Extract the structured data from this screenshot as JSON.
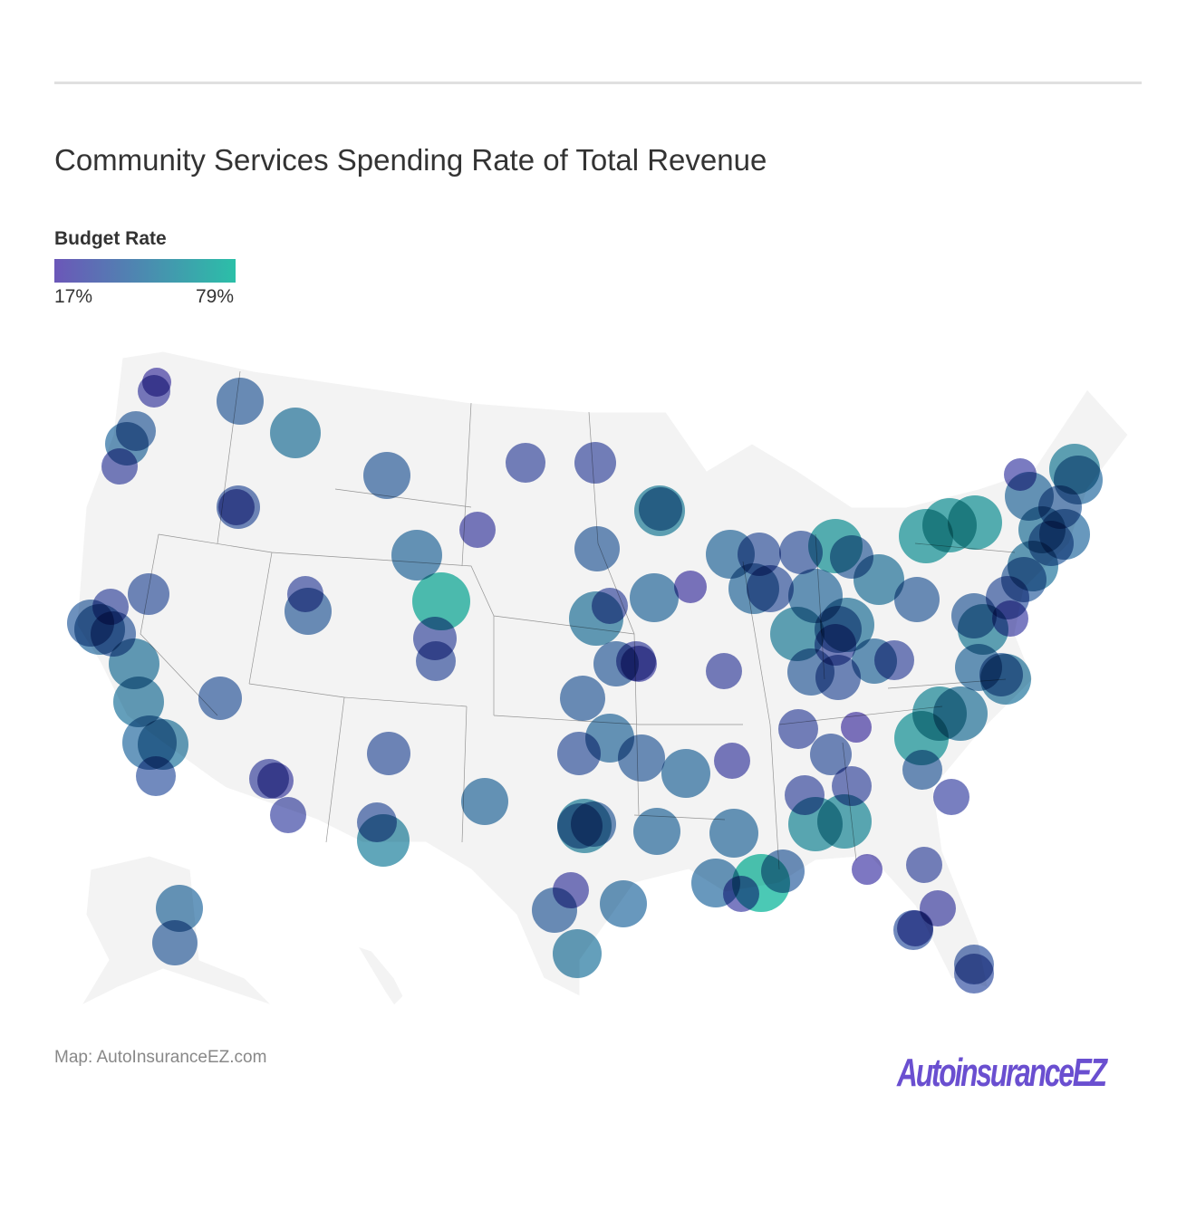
{
  "title": "Community Services Spending Rate of Total Revenue",
  "legend": {
    "title": "Budget Rate",
    "min_label": "17%",
    "max_label": "79%",
    "min_color": "#6b57b8",
    "max_color": "#2bbfa8"
  },
  "source": "Map: AutoInsuranceEZ.com",
  "logo_text": "AutoinsuranceEZ",
  "chart_data": {
    "type": "bubble-map",
    "region": "United States",
    "color_scale": {
      "min": 17,
      "max": 79,
      "unit": "%"
    },
    "bubble_rates": [
      22,
      25,
      40,
      40,
      45,
      28,
      50,
      28,
      35,
      40,
      30,
      30,
      25,
      55,
      45,
      45,
      40,
      75,
      35,
      30,
      40,
      30,
      40,
      45,
      38,
      50,
      50,
      30,
      33,
      38,
      45,
      50,
      35,
      28,
      25,
      28,
      35,
      35,
      55,
      45,
      40,
      30,
      50,
      45,
      22,
      40,
      28,
      25,
      28,
      45,
      35,
      45,
      35,
      35,
      65,
      40,
      45,
      55,
      50,
      40,
      30,
      40,
      35,
      50,
      40,
      45,
      30,
      30,
      20,
      35,
      30,
      30,
      60,
      60,
      40,
      65,
      60,
      50,
      28,
      30,
      22,
      25,
      35,
      28,
      35,
      33,
      25,
      45,
      55,
      45,
      65,
      65,
      65,
      50,
      40,
      45,
      40,
      50,
      40,
      35,
      25,
      40,
      55,
      45,
      50,
      40,
      35,
      45,
      40,
      45,
      25,
      55,
      40,
      40,
      45,
      45,
      45,
      79,
      25,
      40,
      25,
      40,
      45,
      50,
      45,
      40
    ]
  }
}
